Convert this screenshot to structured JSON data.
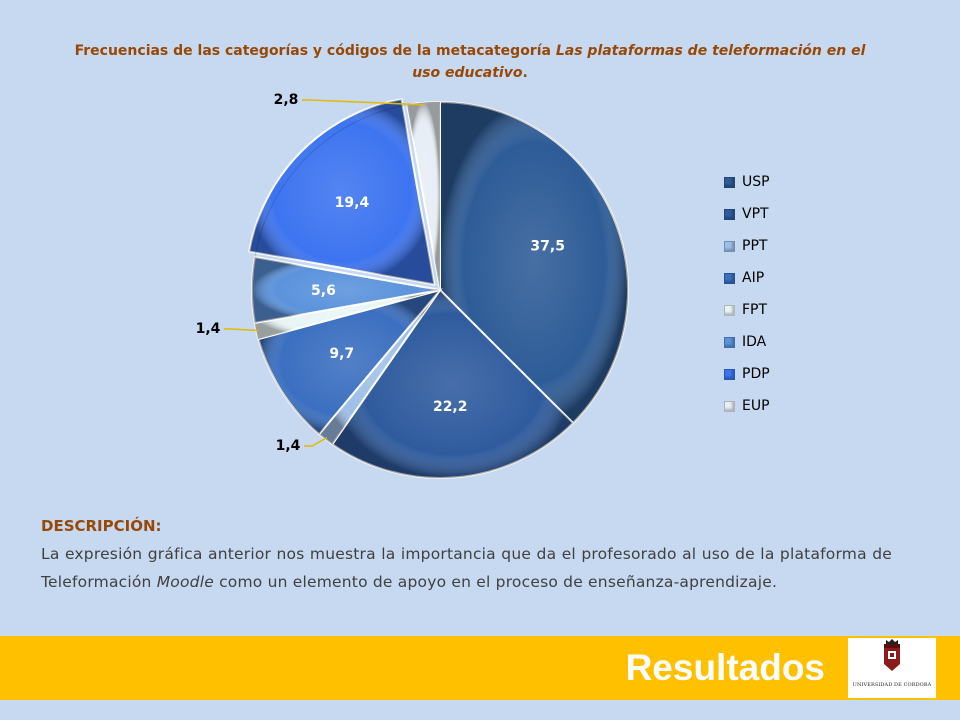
{
  "title": {
    "part1": "Frecuencias de las categorías y códigos de la metacategoría ",
    "part2_italic": "Las plataformas de teleformación en el uso educativo",
    "part3": "."
  },
  "chart_data": {
    "type": "pie",
    "categories": [
      "USP",
      "VPT",
      "PPT",
      "AIP",
      "FPT",
      "IDA",
      "PDP",
      "EUP"
    ],
    "values": [
      37.5,
      22.2,
      1.4,
      9.7,
      1.4,
      5.6,
      19.4,
      2.8
    ],
    "data_labels": [
      "37,5",
      "22,2",
      "1,4",
      "9,7",
      "1,4",
      "5,6",
      "19,4",
      "2,8"
    ],
    "colors": [
      "#2e5c97",
      "#2f5b9e",
      "#9fbfe8",
      "#3b6fc0",
      "#e9f5f5",
      "#5b93dc",
      "#3d74f0",
      "#e8eef6"
    ],
    "legend_position": "right",
    "start_angle_deg": 0,
    "direction": "clockwise"
  },
  "description": {
    "heading": "DESCRIPCIÓN:",
    "body_part1": "La expresión gráfica anterior nos muestra la importancia que da el profesorado al uso de la plataforma de Teleformación ",
    "body_italic": "Moodle",
    "body_part2": " como un elemento de apoyo en el proceso de enseñanza-aprendizaje."
  },
  "footer": {
    "title": "Resultados",
    "logo_text": "UNIVERSIDAD DE CORDOBA"
  }
}
